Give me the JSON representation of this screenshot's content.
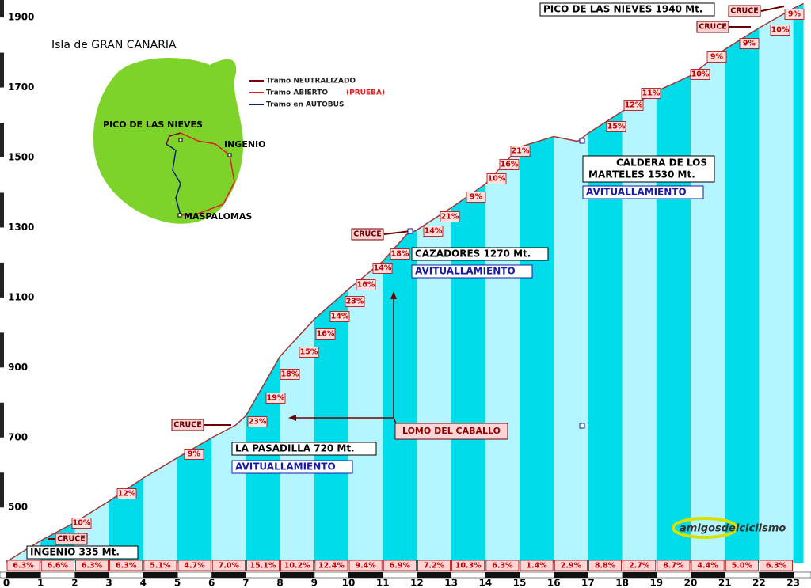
{
  "chart_data": {
    "type": "area",
    "x": [
      0,
      1,
      2,
      3,
      4,
      5,
      6,
      6.7,
      7,
      8,
      9,
      10,
      11,
      11.7,
      12,
      13,
      14,
      15,
      16,
      16.7,
      17,
      18,
      19,
      20,
      21,
      22,
      23,
      23.3
    ],
    "values": [
      345,
      405,
      457,
      518,
      584,
      642,
      699,
      735,
      762,
      932,
      1038,
      1124,
      1203,
      1280,
      1293,
      1356,
      1424,
      1530,
      1560,
      1546,
      1569,
      1632,
      1689,
      1734,
      1809,
      1870,
      1926,
      1940
    ],
    "color": "#a03838",
    "xlim": [
      0,
      23.3
    ],
    "ylim": [
      340,
      1950
    ],
    "xticks": [
      0,
      1,
      2,
      3,
      4,
      5,
      6,
      7,
      8,
      9,
      10,
      11,
      12,
      13,
      14,
      15,
      16,
      17,
      18,
      19,
      20,
      21,
      22,
      23
    ],
    "yticks": [
      500,
      700,
      900,
      1100,
      1300,
      1500,
      1700,
      1900
    ],
    "gradients": {
      "values": [
        6.3,
        6.6,
        6.3,
        6.3,
        5.1,
        4.7,
        7.0,
        15.1,
        10.2,
        12.4,
        9.4,
        6.9,
        7.2,
        10.3,
        6.3,
        1.4,
        2.9,
        8.8,
        2.7,
        8.7,
        4.4,
        5.0,
        6.3
      ],
      "value_labels": [
        "6.3%",
        "6.6%",
        "6.3%",
        "6.3%",
        "5.1%",
        "4.7%",
        "7.0%",
        "15.1%",
        "10.2%",
        "12.4%",
        "9.4%",
        "6.9%",
        "7.2%",
        "10.3%",
        "6.3%",
        "1.4%",
        "2.9%",
        "8.8%",
        "2.7%",
        "8.7%",
        "4.4%",
        "5.0%",
        "6.3%"
      ]
    },
    "annotations": [
      "10%",
      "12%",
      "9%",
      "23%",
      "19%",
      "18%",
      "15%",
      "16%",
      "14%",
      "23%",
      "16%",
      "14%",
      "18%",
      "14%",
      "21%",
      "9%",
      "10%",
      "16%",
      "21%",
      "15%",
      "12%",
      "11%",
      "10%",
      "9%",
      "9%",
      "10%",
      "9%"
    ],
    "cruce": [
      "CRUCE",
      "CRUCE",
      "CRUCE",
      "CRUCE",
      "CRUCE"
    ],
    "places": {
      "ingenio": "INGENIO 335 Mt.",
      "pasadilla": "LA PASADILLA 720 Mt.",
      "cazadores": "CAZADORES 1270 Mt.",
      "caldera_1": "CALDERA DE LOS",
      "caldera_2": "MARTELES 1530 Mt.",
      "pico": "PICO DE LAS NIEVES 1940 Mt.",
      "lomo": "LOMO DEL CABALLO",
      "avituallamiento": "AVITUALLAMIENTO"
    }
  },
  "inset": {
    "title": "Isla de GRAN CANARIA",
    "legend": [
      "Tramo NEUTRALIZADO",
      "Tramo ABIERTO",
      "Tramo en AUTOBUS"
    ],
    "prueba": "(PRUEBA)",
    "labels": [
      "PICO DE LAS NIEVES",
      "INGENIO",
      "MASPALOMAS"
    ]
  },
  "logo": "amigosdelciclismo"
}
